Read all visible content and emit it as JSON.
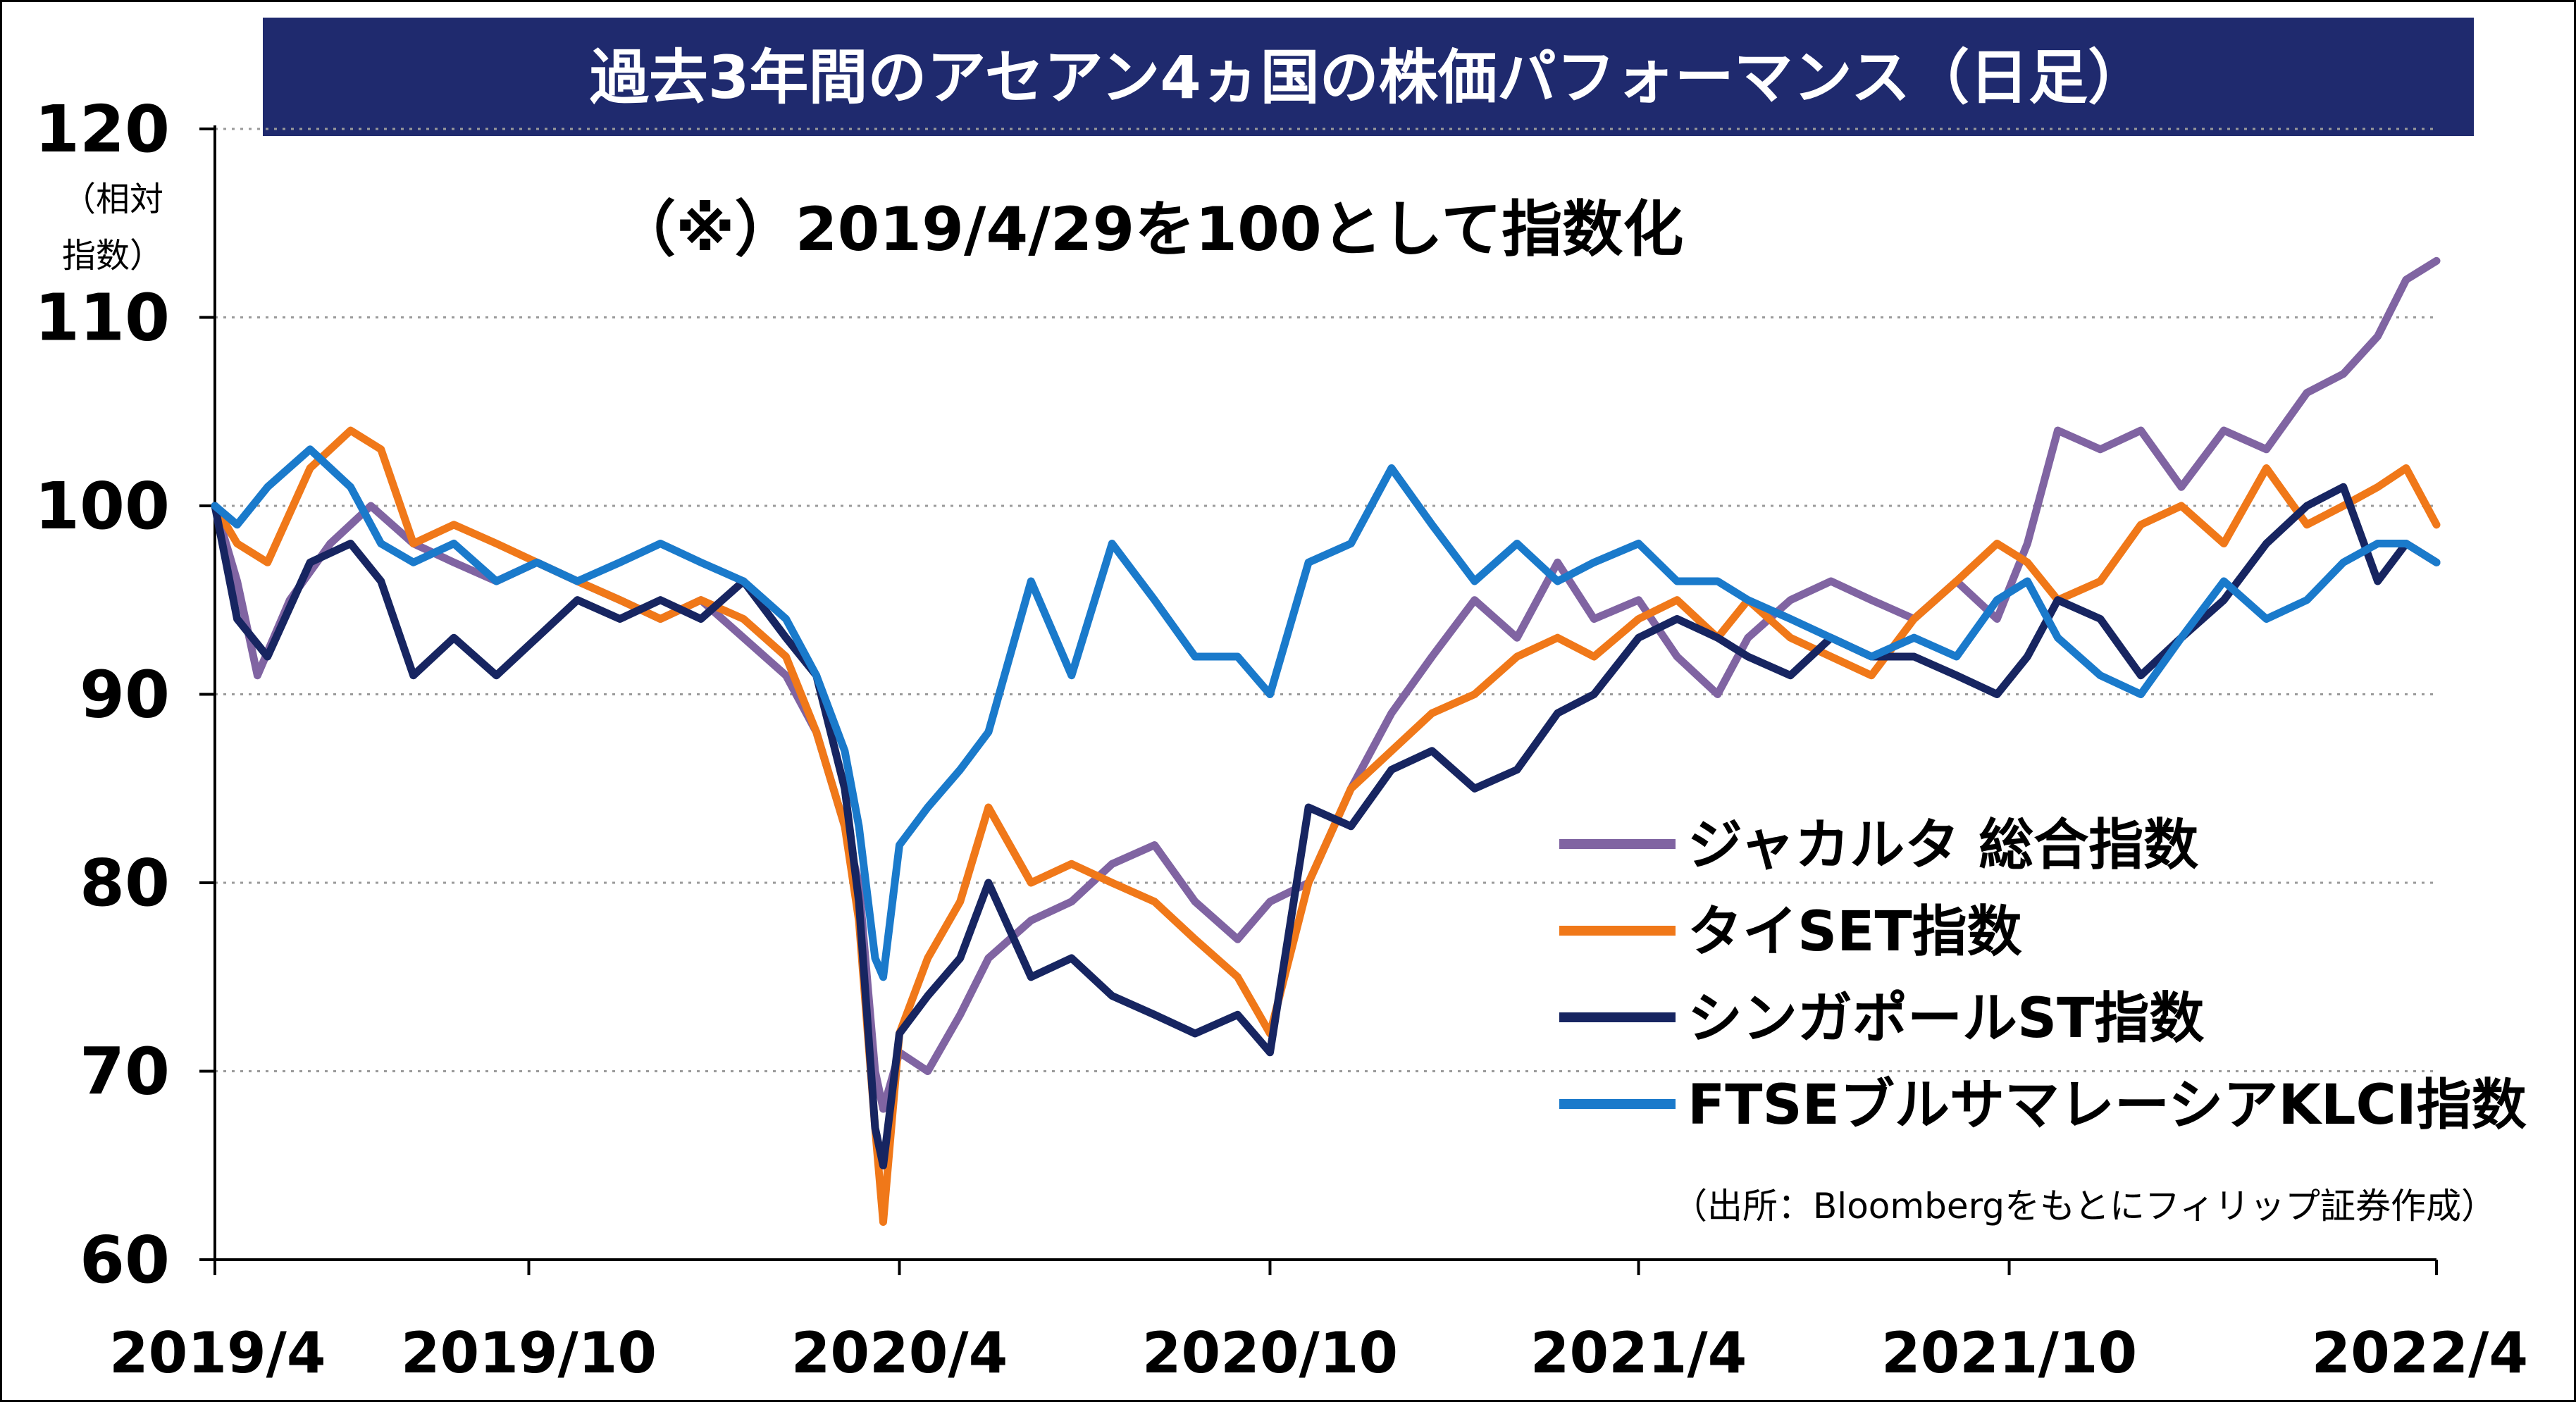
{
  "chart_data": {
    "type": "line",
    "title": "過去3年間のアセアン4ヵ国の株価パフォーマンス（日足）",
    "subtitle": "（※）2019/4/29を100として指数化",
    "ylabel_lines": [
      "（相対",
      "指数）"
    ],
    "source": "（出所：Bloombergをもとにフィリップ証券作成）",
    "ylim": [
      60,
      120
    ],
    "yticks": [
      "60",
      "70",
      "80",
      "90",
      "100",
      "110",
      "120"
    ],
    "xlim": [
      "2019-04-29",
      "2022-04-30"
    ],
    "xticks": [
      {
        "date": "2019-04-29",
        "label": "2019/4"
      },
      {
        "date": "2019-10-01",
        "label": "2019/10"
      },
      {
        "date": "2020-04-01",
        "label": "2020/4"
      },
      {
        "date": "2020-10-01",
        "label": "2020/10"
      },
      {
        "date": "2021-04-01",
        "label": "2021/4"
      },
      {
        "date": "2021-10-01",
        "label": "2021/10"
      },
      {
        "date": "2022-04-30",
        "label": "2022/4"
      }
    ],
    "grid": "horizontal-dotted",
    "legend_position": "right-middle",
    "series": [
      {
        "name": "ジャカルタ 総合指数",
        "color": "#8064A2",
        "x": [
          "2019-04-29",
          "2019-05-10",
          "2019-05-20",
          "2019-06-05",
          "2019-06-25",
          "2019-07-15",
          "2019-08-05",
          "2019-08-25",
          "2019-09-15",
          "2019-10-05",
          "2019-10-25",
          "2019-11-15",
          "2019-12-05",
          "2019-12-25",
          "2020-01-15",
          "2020-02-05",
          "2020-02-20",
          "2020-03-05",
          "2020-03-12",
          "2020-03-20",
          "2020-03-24",
          "2020-04-01",
          "2020-04-15",
          "2020-05-01",
          "2020-05-15",
          "2020-06-05",
          "2020-06-25",
          "2020-07-15",
          "2020-08-05",
          "2020-08-25",
          "2020-09-15",
          "2020-10-01",
          "2020-10-20",
          "2020-11-10",
          "2020-11-30",
          "2020-12-20",
          "2021-01-10",
          "2021-01-31",
          "2021-02-20",
          "2021-03-10",
          "2021-04-01",
          "2021-04-20",
          "2021-05-10",
          "2021-05-25",
          "2021-06-15",
          "2021-07-05",
          "2021-07-25",
          "2021-08-15",
          "2021-09-05",
          "2021-09-25",
          "2021-10-10",
          "2021-10-25",
          "2021-11-15",
          "2021-12-05",
          "2021-12-25",
          "2022-01-15",
          "2022-02-05",
          "2022-02-25",
          "2022-03-15",
          "2022-04-01",
          "2022-04-15",
          "2022-04-30"
        ],
        "y": [
          100,
          96,
          91,
          95,
          98,
          100,
          98,
          97,
          96,
          97,
          96,
          95,
          94,
          95,
          93,
          91,
          88,
          83,
          80,
          70,
          68,
          71,
          70,
          73,
          76,
          78,
          79,
          81,
          82,
          79,
          77,
          79,
          80,
          85,
          89,
          92,
          95,
          93,
          97,
          94,
          95,
          92,
          90,
          93,
          95,
          96,
          95,
          94,
          96,
          94,
          98,
          104,
          103,
          104,
          101,
          104,
          103,
          106,
          107,
          109,
          112,
          113
        ]
      },
      {
        "name": "タイSET指数",
        "color": "#F07819",
        "x": [
          "2019-04-29",
          "2019-05-10",
          "2019-05-25",
          "2019-06-15",
          "2019-07-05",
          "2019-07-20",
          "2019-08-05",
          "2019-08-25",
          "2019-09-15",
          "2019-10-05",
          "2019-10-25",
          "2019-11-15",
          "2019-12-05",
          "2019-12-25",
          "2020-01-15",
          "2020-02-05",
          "2020-02-20",
          "2020-03-05",
          "2020-03-12",
          "2020-03-20",
          "2020-03-24",
          "2020-04-01",
          "2020-04-15",
          "2020-05-01",
          "2020-05-15",
          "2020-06-05",
          "2020-06-25",
          "2020-07-15",
          "2020-08-05",
          "2020-08-25",
          "2020-09-15",
          "2020-10-01",
          "2020-10-20",
          "2020-11-10",
          "2020-11-30",
          "2020-12-20",
          "2021-01-10",
          "2021-01-31",
          "2021-02-20",
          "2021-03-10",
          "2021-04-01",
          "2021-04-20",
          "2021-05-10",
          "2021-05-25",
          "2021-06-15",
          "2021-07-05",
          "2021-07-25",
          "2021-08-15",
          "2021-09-05",
          "2021-09-25",
          "2021-10-10",
          "2021-10-25",
          "2021-11-15",
          "2021-12-05",
          "2021-12-25",
          "2022-01-15",
          "2022-02-05",
          "2022-02-25",
          "2022-03-15",
          "2022-04-01",
          "2022-04-15",
          "2022-04-30"
        ],
        "y": [
          100,
          98,
          97,
          102,
          104,
          103,
          98,
          99,
          98,
          97,
          96,
          95,
          94,
          95,
          94,
          92,
          88,
          83,
          78,
          67,
          62,
          72,
          76,
          79,
          84,
          80,
          81,
          80,
          79,
          77,
          75,
          72,
          80,
          85,
          87,
          89,
          90,
          92,
          93,
          92,
          94,
          95,
          93,
          95,
          93,
          92,
          91,
          94,
          96,
          98,
          97,
          95,
          96,
          99,
          100,
          98,
          102,
          99,
          100,
          101,
          102,
          99
        ]
      },
      {
        "name": "シンガポールST指数",
        "color": "#172561",
        "x": [
          "2019-04-29",
          "2019-05-10",
          "2019-05-25",
          "2019-06-15",
          "2019-07-05",
          "2019-07-20",
          "2019-08-05",
          "2019-08-25",
          "2019-09-15",
          "2019-10-05",
          "2019-10-25",
          "2019-11-15",
          "2019-12-05",
          "2019-12-25",
          "2020-01-15",
          "2020-02-05",
          "2020-02-20",
          "2020-03-05",
          "2020-03-12",
          "2020-03-20",
          "2020-03-24",
          "2020-04-01",
          "2020-04-15",
          "2020-05-01",
          "2020-05-15",
          "2020-06-05",
          "2020-06-25",
          "2020-07-15",
          "2020-08-05",
          "2020-08-25",
          "2020-09-15",
          "2020-10-01",
          "2020-10-20",
          "2020-11-10",
          "2020-11-30",
          "2020-12-20",
          "2021-01-10",
          "2021-01-31",
          "2021-02-20",
          "2021-03-10",
          "2021-04-01",
          "2021-04-20",
          "2021-05-10",
          "2021-05-25",
          "2021-06-15",
          "2021-07-05",
          "2021-07-25",
          "2021-08-15",
          "2021-09-05",
          "2021-09-25",
          "2021-10-10",
          "2021-10-25",
          "2021-11-15",
          "2021-12-05",
          "2021-12-25",
          "2022-01-15",
          "2022-02-05",
          "2022-02-25",
          "2022-03-15",
          "2022-04-01",
          "2022-04-15",
          "2022-04-30"
        ],
        "y": [
          100,
          94,
          92,
          97,
          98,
          96,
          91,
          93,
          91,
          93,
          95,
          94,
          95,
          94,
          96,
          93,
          91,
          85,
          79,
          67,
          65,
          72,
          74,
          76,
          80,
          75,
          76,
          74,
          73,
          72,
          73,
          71,
          84,
          83,
          86,
          87,
          85,
          86,
          89,
          90,
          93,
          94,
          93,
          92,
          91,
          93,
          92,
          92,
          91,
          90,
          92,
          95,
          94,
          91,
          93,
          95,
          98,
          100,
          101,
          96,
          98,
          97
        ]
      },
      {
        "name": "FTSEブルサマレーシアKLCI指数",
        "color": "#1A7ACB",
        "x": [
          "2019-04-29",
          "2019-05-10",
          "2019-05-25",
          "2019-06-15",
          "2019-07-05",
          "2019-07-20",
          "2019-08-05",
          "2019-08-25",
          "2019-09-15",
          "2019-10-05",
          "2019-10-25",
          "2019-11-15",
          "2019-12-05",
          "2019-12-25",
          "2020-01-15",
          "2020-02-05",
          "2020-02-20",
          "2020-03-05",
          "2020-03-12",
          "2020-03-20",
          "2020-03-24",
          "2020-04-01",
          "2020-04-15",
          "2020-05-01",
          "2020-05-15",
          "2020-06-05",
          "2020-06-25",
          "2020-07-15",
          "2020-08-05",
          "2020-08-25",
          "2020-09-15",
          "2020-10-01",
          "2020-10-20",
          "2020-11-10",
          "2020-11-30",
          "2020-12-20",
          "2021-01-10",
          "2021-01-31",
          "2021-02-20",
          "2021-03-10",
          "2021-04-01",
          "2021-04-20",
          "2021-05-10",
          "2021-05-25",
          "2021-06-15",
          "2021-07-05",
          "2021-07-25",
          "2021-08-15",
          "2021-09-05",
          "2021-09-25",
          "2021-10-10",
          "2021-10-25",
          "2021-11-15",
          "2021-12-05",
          "2021-12-25",
          "2022-01-15",
          "2022-02-05",
          "2022-02-25",
          "2022-03-15",
          "2022-04-01",
          "2022-04-15",
          "2022-04-30"
        ],
        "y": [
          100,
          99,
          101,
          103,
          101,
          98,
          97,
          98,
          96,
          97,
          96,
          97,
          98,
          97,
          96,
          94,
          91,
          87,
          83,
          76,
          75,
          82,
          84,
          86,
          88,
          96,
          91,
          98,
          95,
          92,
          92,
          90,
          97,
          98,
          102,
          99,
          96,
          98,
          96,
          97,
          98,
          96,
          96,
          95,
          94,
          93,
          92,
          93,
          92,
          95,
          96,
          93,
          91,
          90,
          93,
          96,
          94,
          95,
          97,
          98,
          98,
          97
        ]
      }
    ]
  }
}
